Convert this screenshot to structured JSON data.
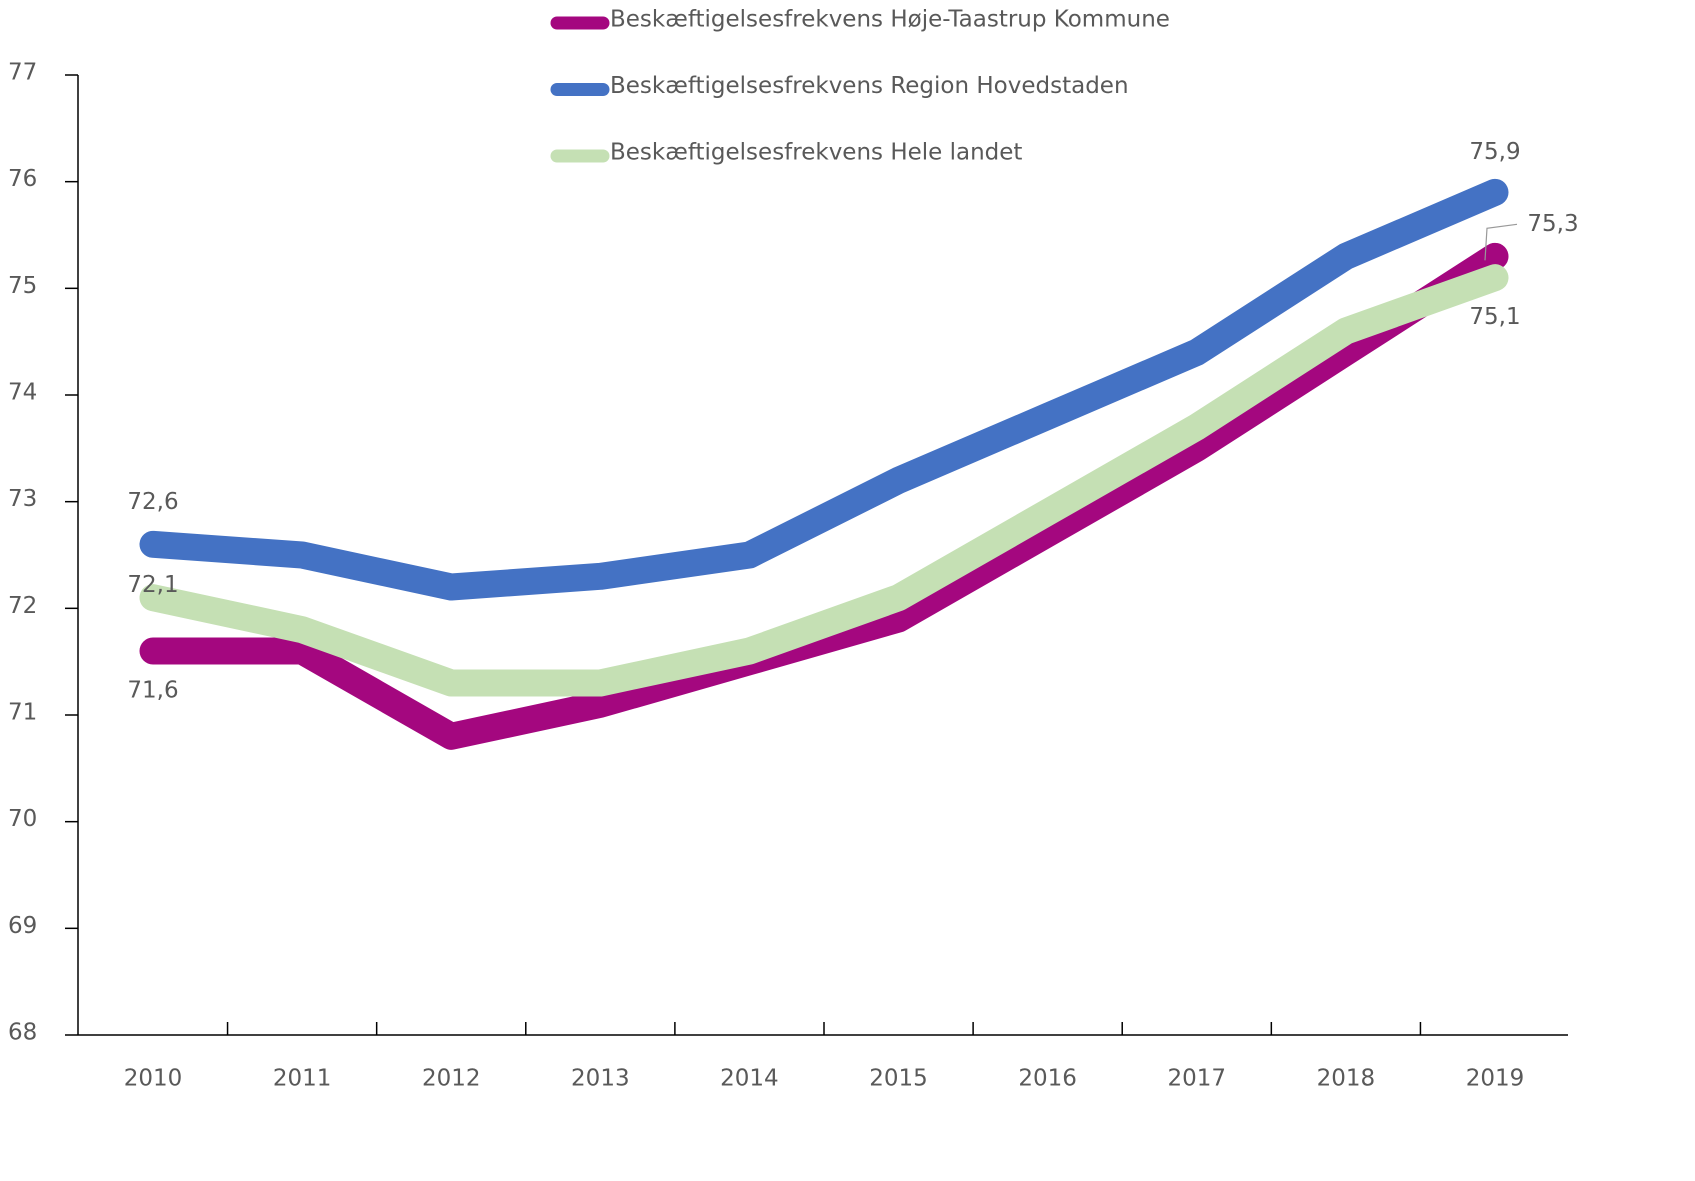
{
  "chart_data": {
    "type": "line",
    "categories": [
      "2010",
      "2011",
      "2012",
      "2013",
      "2014",
      "2015",
      "2016",
      "2017",
      "2018",
      "2019"
    ],
    "series": [
      {
        "name": "Beskæftigelsesfrekvens Høje-Taastrup Kommune",
        "color": "#a4077f",
        "values": [
          71.6,
          71.6,
          70.8,
          71.1,
          71.5,
          71.9,
          72.7,
          73.5,
          74.4,
          75.3
        ],
        "value_labels": [
          "71,6",
          null,
          null,
          null,
          null,
          null,
          null,
          null,
          null,
          "75,3"
        ]
      },
      {
        "name": "Beskæftigelsesfrekvens Region Hovedstaden",
        "color": "#4472c4",
        "values": [
          72.6,
          72.5,
          72.2,
          72.3,
          72.5,
          73.2,
          73.8,
          74.4,
          75.3,
          75.9
        ],
        "value_labels": [
          "72,6",
          null,
          null,
          null,
          null,
          null,
          null,
          null,
          null,
          "75,9"
        ]
      },
      {
        "name": "Beskæftigelsesfrekvens Hele landet",
        "color": "#c5e0b4",
        "values": [
          72.1,
          71.8,
          71.3,
          71.3,
          71.6,
          72.1,
          72.9,
          73.7,
          74.6,
          75.1
        ],
        "value_labels": [
          "72,1",
          null,
          null,
          null,
          null,
          null,
          null,
          null,
          null,
          "75,1"
        ]
      }
    ],
    "ylim": [
      68,
      77
    ],
    "yticks": [
      68,
      69,
      70,
      71,
      72,
      73,
      74,
      75,
      76,
      77
    ]
  }
}
